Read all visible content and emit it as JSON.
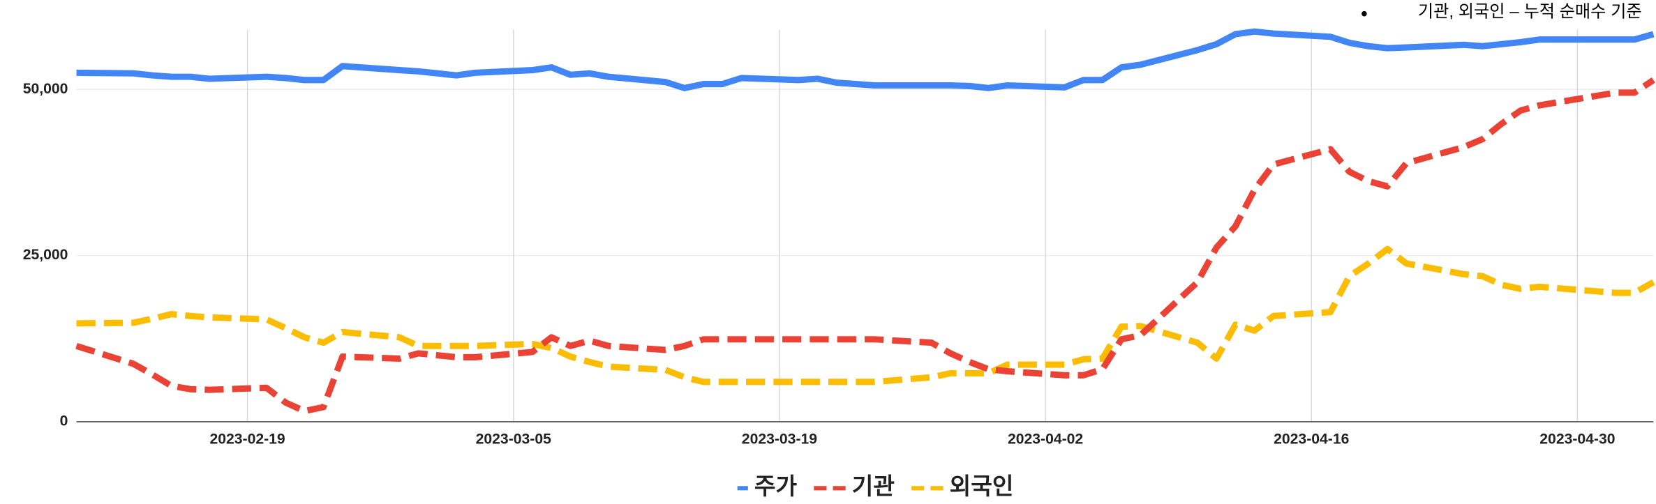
{
  "chart_data": {
    "type": "line",
    "annotation": "기관, 외국인 – 누적 순매수 기준",
    "x": [
      "2023-02-10",
      "2023-02-13",
      "2023-02-14",
      "2023-02-15",
      "2023-02-16",
      "2023-02-17",
      "2023-02-20",
      "2023-02-21",
      "2023-02-22",
      "2023-02-23",
      "2023-02-24",
      "2023-02-27",
      "2023-02-28",
      "2023-03-02",
      "2023-03-03",
      "2023-03-06",
      "2023-03-07",
      "2023-03-08",
      "2023-03-09",
      "2023-03-10",
      "2023-03-13",
      "2023-03-14",
      "2023-03-15",
      "2023-03-16",
      "2023-03-17",
      "2023-03-20",
      "2023-03-21",
      "2023-03-22",
      "2023-03-23",
      "2023-03-24",
      "2023-03-27",
      "2023-03-28",
      "2023-03-29",
      "2023-03-30",
      "2023-03-31",
      "2023-04-03",
      "2023-04-04",
      "2023-04-05",
      "2023-04-06",
      "2023-04-07",
      "2023-04-10",
      "2023-04-11",
      "2023-04-12",
      "2023-04-13",
      "2023-04-14",
      "2023-04-17",
      "2023-04-18",
      "2023-04-19",
      "2023-04-20",
      "2023-04-21",
      "2023-04-24",
      "2023-04-25",
      "2023-04-26",
      "2023-04-27",
      "2023-04-28",
      "2023-05-02",
      "2023-05-03",
      "2023-05-04"
    ],
    "series": [
      {
        "name": "주가",
        "color": "#4285f4",
        "dashed": false,
        "values": [
          52500,
          52400,
          52100,
          51900,
          51900,
          51600,
          51900,
          51700,
          51400,
          51400,
          53500,
          52900,
          52700,
          52100,
          52500,
          52900,
          53300,
          52200,
          52400,
          51900,
          51100,
          50200,
          50800,
          50800,
          51700,
          51400,
          51600,
          51000,
          50800,
          50600,
          50600,
          50600,
          50500,
          50200,
          50600,
          50300,
          51400,
          51400,
          53300,
          53700,
          55900,
          56800,
          58300,
          58700,
          58400,
          57900,
          57000,
          56500,
          56200,
          56300,
          56700,
          56500,
          56800,
          57100,
          57500,
          57500,
          57500,
          58300
        ]
      },
      {
        "name": "기관",
        "color": "#ea4335",
        "dashed": true,
        "values": [
          11400,
          8700,
          7100,
          5400,
          4900,
          4800,
          5100,
          2900,
          1600,
          2200,
          9800,
          9500,
          10300,
          9700,
          9700,
          10500,
          12700,
          11400,
          12200,
          11400,
          10800,
          11400,
          12400,
          12400,
          12400,
          12400,
          12400,
          12400,
          12400,
          12400,
          11900,
          10300,
          9000,
          7900,
          7600,
          7000,
          7000,
          7900,
          12400,
          13000,
          21000,
          26200,
          29400,
          34900,
          38700,
          41000,
          37600,
          36200,
          35400,
          38900,
          41300,
          42500,
          44800,
          46800,
          47600,
          49500,
          49500,
          51400
        ]
      },
      {
        "name": "외국인",
        "color": "#fbbc04",
        "dashed": true,
        "values": [
          14800,
          14900,
          15500,
          16200,
          15900,
          15700,
          15400,
          14100,
          12700,
          11900,
          13500,
          12700,
          11400,
          11400,
          11400,
          11700,
          11100,
          9800,
          9000,
          8300,
          7800,
          6700,
          6000,
          6000,
          6000,
          6000,
          6000,
          6000,
          6000,
          6000,
          6700,
          7300,
          7300,
          7300,
          8600,
          8600,
          9400,
          9500,
          14300,
          14400,
          11900,
          9500,
          14600,
          13700,
          15900,
          16500,
          21900,
          23800,
          26000,
          23800,
          22200,
          21900,
          20600,
          20000,
          20300,
          19400,
          19400,
          21000
        ]
      }
    ],
    "xlim": [
      "2023-02-10",
      "2023-05-04"
    ],
    "xticks": [
      "2023-02-19",
      "2023-03-05",
      "2023-03-19",
      "2023-04-02",
      "2023-04-16",
      "2023-04-30"
    ],
    "ylim": [
      0,
      59000
    ],
    "yticks": [
      0,
      {
        "value": 25000,
        "label": "25,000"
      },
      {
        "value": 50000,
        "label": "50,000"
      }
    ],
    "grid": true,
    "legend": "bottom"
  }
}
